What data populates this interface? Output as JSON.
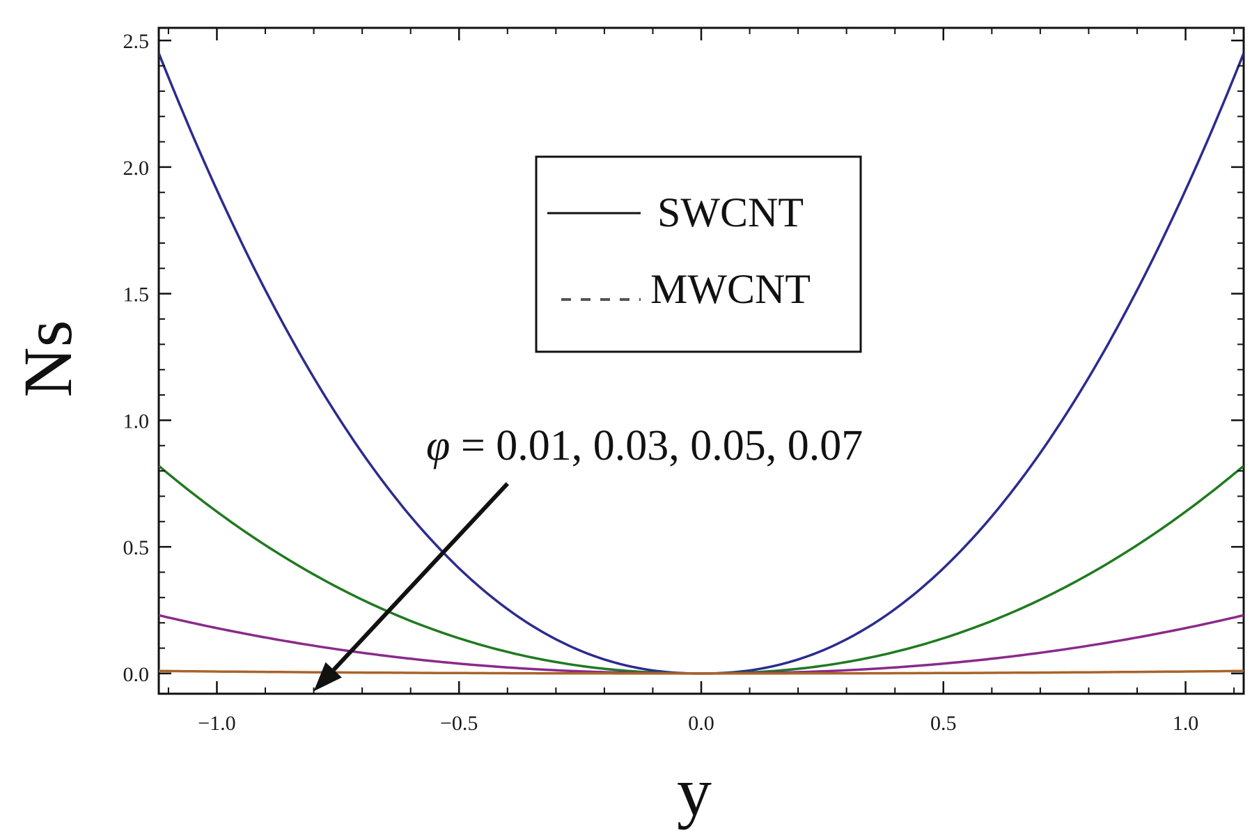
{
  "chart_data": {
    "type": "line",
    "xlabel": "y",
    "ylabel": "Ns",
    "xlim": [
      -1.12,
      1.12
    ],
    "ylim": [
      -0.08,
      2.55
    ],
    "x_ticks": [
      -1.0,
      -0.5,
      0.0,
      0.5,
      1.0
    ],
    "x_tick_labels": [
      "−1.0",
      "−0.5",
      "0.0",
      "0.5",
      "1.0"
    ],
    "y_ticks": [
      0.0,
      0.5,
      1.0,
      1.5,
      2.0,
      2.5
    ],
    "y_tick_labels": [
      "0.0",
      "0.5",
      "1.0",
      "1.5",
      "2.0",
      "2.5"
    ],
    "grid": false,
    "legend": {
      "placement": "upper-center",
      "entries": [
        {
          "label": "SWCNT",
          "style": "solid",
          "color": "#111111"
        },
        {
          "label": "MWCNT",
          "style": "dashed",
          "color": "#555555"
        }
      ]
    },
    "annotation": {
      "symbol": "φ",
      "text": " = 0.01, 0.03, 0.05, 0.07",
      "arrow_from": [
        -0.4,
        0.75
      ],
      "arrow_to": [
        -0.8,
        -0.07
      ]
    },
    "series": [
      {
        "color": "#2b2b8f",
        "x_range": [
          -1.12,
          1.12
        ],
        "curve": "a*|x|^2.2",
        "y_at_xmax": 2.45,
        "values": [
          [
            -1.12,
            2.45
          ],
          [
            -1.0,
            1.91
          ],
          [
            -0.75,
            0.97
          ],
          [
            -0.5,
            0.4
          ],
          [
            -0.25,
            0.09
          ],
          [
            0.0,
            0.0
          ],
          [
            0.25,
            0.09
          ],
          [
            0.5,
            0.4
          ],
          [
            0.75,
            0.97
          ],
          [
            1.0,
            1.91
          ],
          [
            1.12,
            2.45
          ]
        ]
      },
      {
        "color": "#1f7a1f",
        "x_range": [
          -1.12,
          1.12
        ],
        "curve": "a*|x|^2.2",
        "y_at_xmax": 0.82,
        "values": [
          [
            -1.12,
            0.82
          ],
          [
            -1.0,
            0.64
          ],
          [
            -0.75,
            0.32
          ],
          [
            -0.5,
            0.14
          ],
          [
            -0.25,
            0.03
          ],
          [
            0.0,
            0.0
          ],
          [
            0.25,
            0.03
          ],
          [
            0.5,
            0.14
          ],
          [
            0.75,
            0.32
          ],
          [
            1.0,
            0.64
          ],
          [
            1.12,
            0.82
          ]
        ]
      },
      {
        "color": "#8a2a8a",
        "x_range": [
          -1.12,
          1.12
        ],
        "curve": "a*|x|^2.2",
        "y_at_xmax": 0.23,
        "values": [
          [
            -1.12,
            0.23
          ],
          [
            -1.0,
            0.18
          ],
          [
            -0.75,
            0.09
          ],
          [
            -0.5,
            0.04
          ],
          [
            -0.25,
            0.01
          ],
          [
            0.0,
            0.0
          ],
          [
            0.25,
            0.01
          ],
          [
            0.5,
            0.04
          ],
          [
            0.75,
            0.09
          ],
          [
            1.0,
            0.18
          ],
          [
            1.12,
            0.23
          ]
        ]
      },
      {
        "color": "#a8642b",
        "x_range": [
          -1.12,
          1.12
        ],
        "curve": "a*|x|^2.2",
        "y_at_xmax": 0.01,
        "values": [
          [
            -1.12,
            0.01
          ],
          [
            -0.5,
            0.002
          ],
          [
            0.0,
            0.0
          ],
          [
            0.5,
            0.002
          ],
          [
            1.12,
            0.01
          ]
        ]
      }
    ]
  }
}
